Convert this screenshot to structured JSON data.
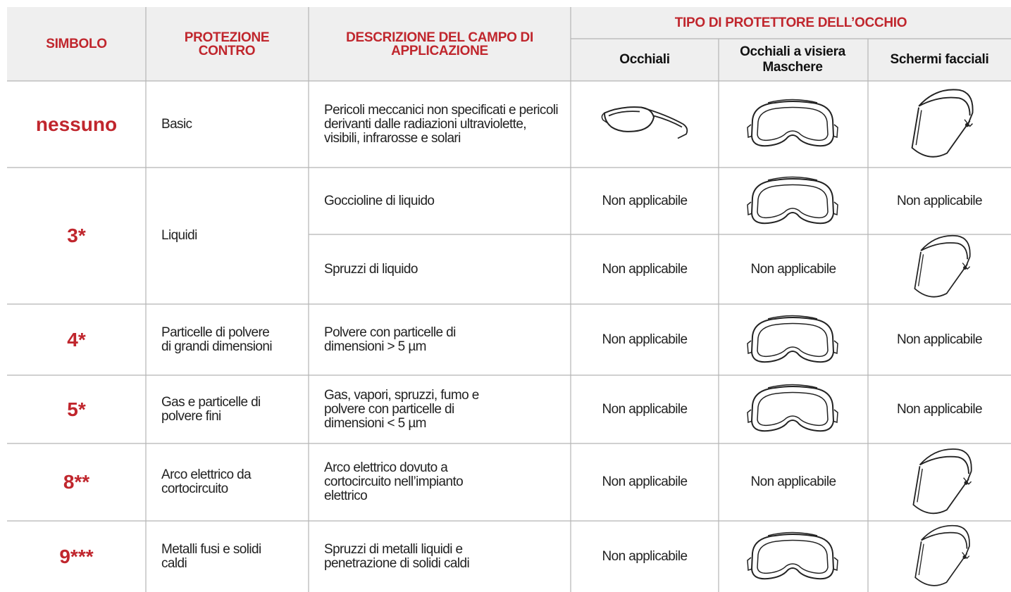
{
  "header": {
    "symbol": "SIMBOLO",
    "protection": "PROTEZIONE CONTRO",
    "description": "DESCRIZIONE DEL CAMPO DI APPLICAZIONE",
    "eye_protector_type": "TIPO DI PROTETTORE DELL’OCCHIO",
    "types": [
      "Occhiali",
      "Occhiali a visiera Maschere",
      "Schermi facciali"
    ]
  },
  "rows": [
    {
      "symbol": "nessuno",
      "protection": "Basic",
      "items": [
        {
          "description": "Pericoli meccanici non specificati e pericoli derivanti dalle radiazioni ultraviolette, visibili, infrarosse e solari"
        }
      ]
    },
    {
      "symbol": "3*",
      "protection": "Liquidi",
      "items": [
        {
          "description": "Goccioline di liquido",
          "occhiali": "Non applicabile",
          "schermi_facciali": "Non applicabile"
        },
        {
          "description": "Spruzzi di liquido",
          "occhiali": "Non applicabile",
          "occhiali_a_visiera": "Non applicabile"
        }
      ]
    },
    {
      "symbol": "4*",
      "protection": "Particelle di polvere di grandi dimensioni",
      "items": [
        {
          "description": "Polvere con particelle di dimensioni > 5 µm",
          "occhiali": "Non applicabile",
          "schermi_facciali": "Non applicabile"
        }
      ]
    },
    {
      "symbol": "5*",
      "protection": "Gas e particelle di polvere fini",
      "items": [
        {
          "description": "Gas, vapori, spruzzi, fumo e polvere con particelle di dimensioni < 5 µm",
          "occhiali": "Non applicabile",
          "schermi_facciali": "Non applicabile"
        }
      ]
    },
    {
      "symbol": "8**",
      "protection": "Arco elettrico da cortocircuito",
      "items": [
        {
          "description": "Arco elettrico dovuto a cortocircuito nell’impianto elettrico",
          "occhiali": "Non applicabile",
          "occhiali_a_visiera": "Non applicabile"
        }
      ]
    },
    {
      "symbol": "9***",
      "protection": "Metalli fusi e solidi caldi",
      "items": [
        {
          "description": "Spruzzi di metalli liquidi e penetrazione di solidi caldi",
          "occhiali": "Non applicabile"
        }
      ]
    }
  ]
}
